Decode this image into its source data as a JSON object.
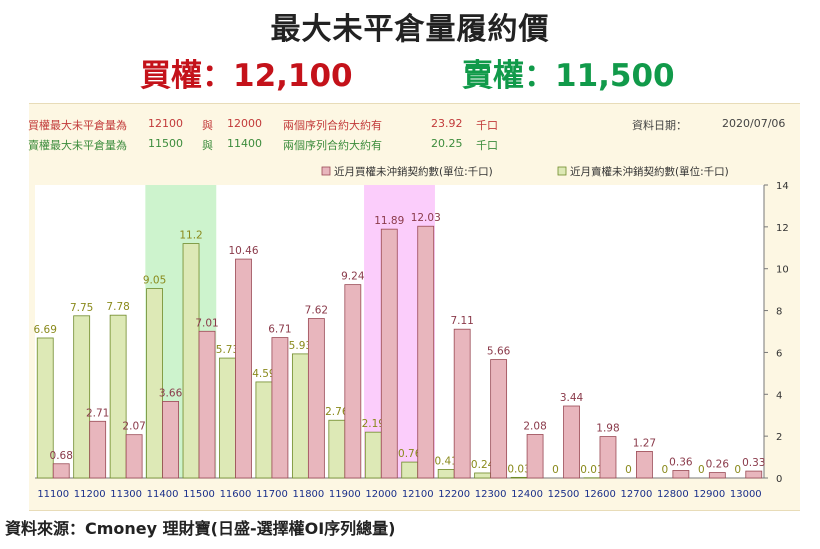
{
  "header": {
    "title": "最大未平倉量履約價",
    "call_label": "買權：12,100",
    "put_label": "賣權：11,500"
  },
  "info": {
    "call_line": {
      "label": "買權最大未平倉量為",
      "strike1": "12100",
      "conj": "與",
      "strike2": "12000",
      "desc": "兩個序列合約大約有",
      "amount": "23.92",
      "unit": "千口"
    },
    "put_line": {
      "label": "賣權最大未平倉量為",
      "strike1": "11500",
      "conj": "與",
      "strike2": "11400",
      "desc": "兩個序列合約大約有",
      "amount": "20.25",
      "unit": "千口"
    },
    "date_label": "資料日期：",
    "date_value": "2020/07/06"
  },
  "source": "資料來源：Cmoney 理財寶(日盛-選擇權OI序列總量)",
  "chart_data": {
    "type": "bar",
    "categories": [
      "11100",
      "11200",
      "11300",
      "11400",
      "11500",
      "11600",
      "11700",
      "11800",
      "11900",
      "12000",
      "12100",
      "12200",
      "12300",
      "12400",
      "12500",
      "12600",
      "12700",
      "12800",
      "12900",
      "13000"
    ],
    "series": [
      {
        "name": "近月賣權未沖銷契約數(單位:千口)",
        "color": "#dde9b6",
        "stroke": "#6f8a2a",
        "label_color": "#8a8a1c",
        "values": [
          6.69,
          7.75,
          7.78,
          9.05,
          11.2,
          5.73,
          4.59,
          5.93,
          2.76,
          2.19,
          0.76,
          0.41,
          0.24,
          0.03,
          0,
          0.01,
          0,
          0,
          0,
          0
        ]
      },
      {
        "name": "近月買權未沖銷契約數(單位:千口)",
        "color": "#e8b6bd",
        "stroke": "#9a4a55",
        "label_color": "#8a3a4a",
        "values": [
          0.68,
          2.71,
          2.07,
          3.66,
          7.01,
          10.46,
          6.71,
          7.62,
          9.24,
          11.89,
          12.03,
          7.11,
          5.66,
          2.08,
          3.44,
          1.98,
          1.27,
          0.36,
          0.26,
          0.33
        ]
      }
    ],
    "ylim": [
      0,
      14
    ],
    "yticks": [
      0,
      2,
      4,
      6,
      8,
      10,
      12,
      14
    ],
    "highlights": [
      {
        "from": "11400",
        "to": "11500",
        "color": "#cdf3cd"
      },
      {
        "from": "12000",
        "to": "12100",
        "color": "#fbcdfb"
      }
    ],
    "legend_position": "top-right",
    "grid": false
  }
}
